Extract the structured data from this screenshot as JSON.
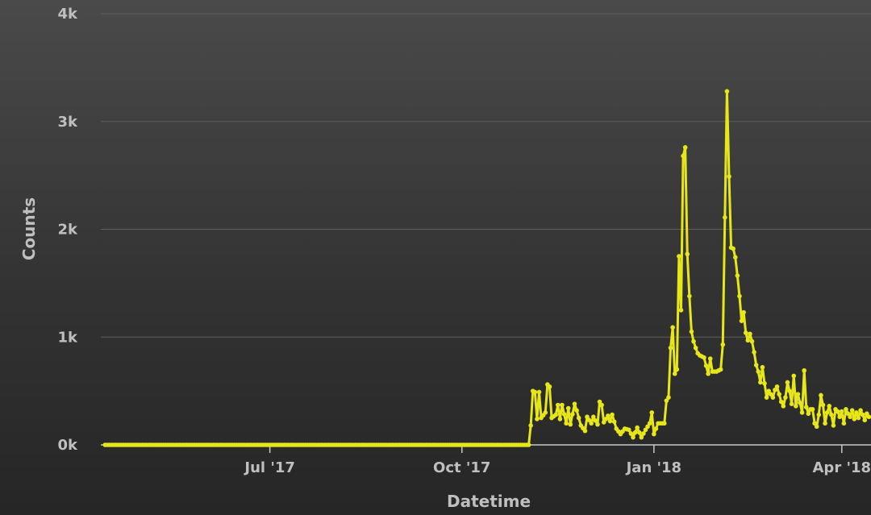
{
  "chart_data": {
    "type": "line",
    "xlabel": "Datetime",
    "ylabel": "Counts",
    "x_tick_labels": [
      "Jul '17",
      "Oct '17",
      "Jan '18",
      "Apr '18"
    ],
    "x_tick_dates": [
      "2017-07-01",
      "2017-10-01",
      "2018-01-01",
      "2018-04-01"
    ],
    "y_tick_labels": [
      "0k",
      "1k",
      "2k",
      "3k",
      "4k"
    ],
    "y_tick_values": [
      0,
      1000,
      2000,
      3000,
      4000
    ],
    "xlim": [
      "2017-04-11",
      "2018-04-15"
    ],
    "ylim": [
      0,
      4000
    ],
    "grid": "horizontal",
    "legend": "none",
    "series": [
      {
        "color": "#e6e619",
        "points": [
          [
            "2017-04-13",
            0
          ],
          [
            "2017-05-01",
            0
          ],
          [
            "2017-06-01",
            0
          ],
          [
            "2017-07-01",
            0
          ],
          [
            "2017-08-01",
            0
          ],
          [
            "2017-09-01",
            0
          ],
          [
            "2017-10-01",
            0
          ],
          [
            "2017-11-02",
            0
          ],
          [
            "2017-11-03",
            180
          ],
          [
            "2017-11-04",
            500
          ],
          [
            "2017-11-05",
            490
          ],
          [
            "2017-11-06",
            240
          ],
          [
            "2017-11-07",
            490
          ],
          [
            "2017-11-08",
            250
          ],
          [
            "2017-11-10",
            300
          ],
          [
            "2017-11-11",
            560
          ],
          [
            "2017-11-12",
            540
          ],
          [
            "2017-11-13",
            250
          ],
          [
            "2017-11-15",
            280
          ],
          [
            "2017-11-16",
            370
          ],
          [
            "2017-11-17",
            240
          ],
          [
            "2017-11-18",
            370
          ],
          [
            "2017-11-20",
            200
          ],
          [
            "2017-11-21",
            340
          ],
          [
            "2017-11-22",
            190
          ],
          [
            "2017-11-24",
            380
          ],
          [
            "2017-11-25",
            320
          ],
          [
            "2017-11-27",
            180
          ],
          [
            "2017-11-29",
            130
          ],
          [
            "2017-11-30",
            260
          ],
          [
            "2017-12-02",
            200
          ],
          [
            "2017-12-03",
            260
          ],
          [
            "2017-12-05",
            190
          ],
          [
            "2017-12-06",
            400
          ],
          [
            "2017-12-07",
            370
          ],
          [
            "2017-12-08",
            210
          ],
          [
            "2017-12-10",
            270
          ],
          [
            "2017-12-11",
            220
          ],
          [
            "2017-12-12",
            280
          ],
          [
            "2017-12-14",
            150
          ],
          [
            "2017-12-16",
            100
          ],
          [
            "2017-12-18",
            150
          ],
          [
            "2017-12-20",
            140
          ],
          [
            "2017-12-22",
            70
          ],
          [
            "2017-12-24",
            160
          ],
          [
            "2017-12-26",
            70
          ],
          [
            "2017-12-28",
            140
          ],
          [
            "2017-12-30",
            200
          ],
          [
            "2017-12-31",
            300
          ],
          [
            "2018-01-01",
            100
          ],
          [
            "2018-01-03",
            200
          ],
          [
            "2018-01-06",
            200
          ],
          [
            "2018-01-07",
            410
          ],
          [
            "2018-01-08",
            440
          ],
          [
            "2018-01-09",
            900
          ],
          [
            "2018-01-10",
            1090
          ],
          [
            "2018-01-11",
            660
          ],
          [
            "2018-01-12",
            700
          ],
          [
            "2018-01-13",
            1750
          ],
          [
            "2018-01-14",
            1250
          ],
          [
            "2018-01-15",
            2680
          ],
          [
            "2018-01-16",
            2760
          ],
          [
            "2018-01-17",
            1770
          ],
          [
            "2018-01-18",
            1380
          ],
          [
            "2018-01-19",
            1050
          ],
          [
            "2018-01-20",
            960
          ],
          [
            "2018-01-21",
            900
          ],
          [
            "2018-01-22",
            850
          ],
          [
            "2018-01-23",
            830
          ],
          [
            "2018-01-25",
            810
          ],
          [
            "2018-01-27",
            660
          ],
          [
            "2018-01-28",
            800
          ],
          [
            "2018-01-29",
            680
          ],
          [
            "2018-01-31",
            680
          ],
          [
            "2018-02-02",
            700
          ],
          [
            "2018-02-03",
            930
          ],
          [
            "2018-02-04",
            2110
          ],
          [
            "2018-02-05",
            3280
          ],
          [
            "2018-02-06",
            2490
          ],
          [
            "2018-02-07",
            1830
          ],
          [
            "2018-02-08",
            1820
          ],
          [
            "2018-02-09",
            1740
          ],
          [
            "2018-02-10",
            1570
          ],
          [
            "2018-02-11",
            1380
          ],
          [
            "2018-02-12",
            1150
          ],
          [
            "2018-02-13",
            1230
          ],
          [
            "2018-02-14",
            1040
          ],
          [
            "2018-02-15",
            970
          ],
          [
            "2018-02-16",
            1030
          ],
          [
            "2018-02-17",
            960
          ],
          [
            "2018-02-18",
            860
          ],
          [
            "2018-02-19",
            740
          ],
          [
            "2018-02-20",
            680
          ],
          [
            "2018-02-21",
            580
          ],
          [
            "2018-02-22",
            720
          ],
          [
            "2018-02-23",
            570
          ],
          [
            "2018-02-24",
            440
          ],
          [
            "2018-02-25",
            500
          ],
          [
            "2018-02-27",
            440
          ],
          [
            "2018-02-28",
            510
          ],
          [
            "2018-03-01",
            540
          ],
          [
            "2018-03-03",
            400
          ],
          [
            "2018-03-04",
            360
          ],
          [
            "2018-03-05",
            440
          ],
          [
            "2018-03-06",
            580
          ],
          [
            "2018-03-07",
            500
          ],
          [
            "2018-03-08",
            380
          ],
          [
            "2018-03-09",
            640
          ],
          [
            "2018-03-10",
            360
          ],
          [
            "2018-03-11",
            470
          ],
          [
            "2018-03-12",
            390
          ],
          [
            "2018-03-13",
            300
          ],
          [
            "2018-03-14",
            690
          ],
          [
            "2018-03-15",
            350
          ],
          [
            "2018-03-16",
            290
          ],
          [
            "2018-03-17",
            330
          ],
          [
            "2018-03-18",
            330
          ],
          [
            "2018-03-19",
            200
          ],
          [
            "2018-03-20",
            170
          ],
          [
            "2018-03-21",
            280
          ],
          [
            "2018-03-22",
            460
          ],
          [
            "2018-03-23",
            370
          ],
          [
            "2018-03-24",
            200
          ],
          [
            "2018-03-25",
            300
          ],
          [
            "2018-03-26",
            360
          ],
          [
            "2018-03-27",
            280
          ],
          [
            "2018-03-28",
            180
          ],
          [
            "2018-03-29",
            330
          ],
          [
            "2018-03-30",
            310
          ],
          [
            "2018-03-31",
            260
          ],
          [
            "2018-04-01",
            310
          ],
          [
            "2018-04-02",
            200
          ],
          [
            "2018-04-03",
            330
          ],
          [
            "2018-04-04",
            290
          ],
          [
            "2018-04-05",
            260
          ],
          [
            "2018-04-06",
            320
          ],
          [
            "2018-04-07",
            240
          ],
          [
            "2018-04-08",
            300
          ],
          [
            "2018-04-09",
            250
          ],
          [
            "2018-04-10",
            320
          ],
          [
            "2018-04-11",
            280
          ],
          [
            "2018-04-12",
            230
          ],
          [
            "2018-04-13",
            290
          ],
          [
            "2018-04-14",
            260
          ]
        ]
      }
    ]
  }
}
